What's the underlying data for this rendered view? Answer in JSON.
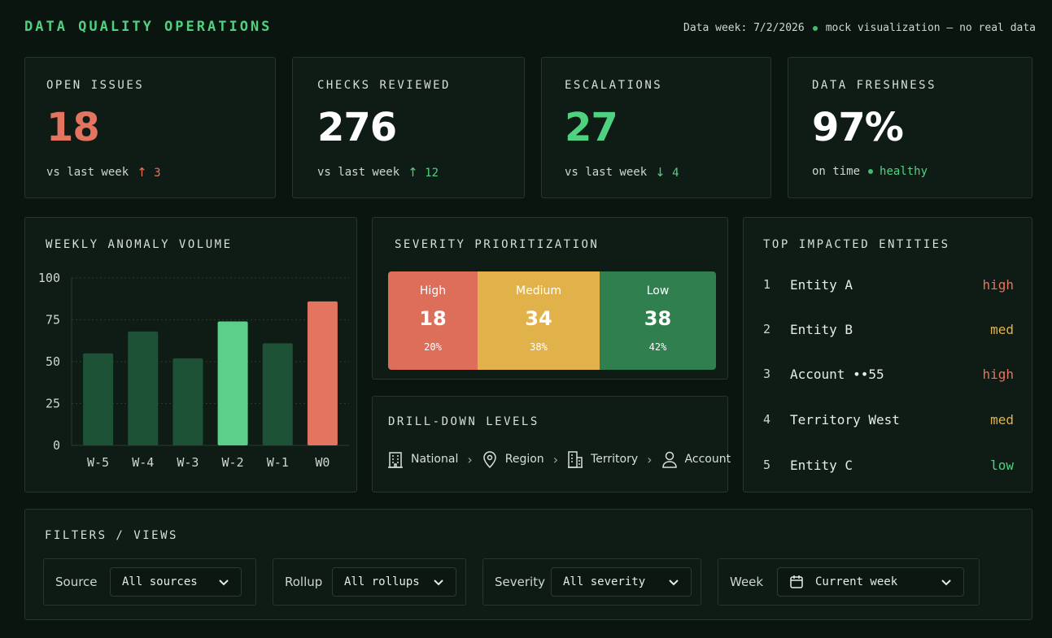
{
  "header": {
    "title": "DATA QUALITY OPERATIONS",
    "data_week": "Data week: 7/2/2026",
    "note": "mock visualization — no real data"
  },
  "kpis": [
    {
      "label": "OPEN ISSUES",
      "value": "18",
      "sub": "vs last week",
      "delta_arrow": "↑",
      "delta": "3",
      "value_color": "#e3745f",
      "delta_color": "#e3745f"
    },
    {
      "label": "CHECKS REVIEWED",
      "value": "276",
      "sub": "vs last week",
      "delta_arrow": "↑",
      "delta": "12",
      "value_color": "#ffffff",
      "delta_color": "#4ed27f"
    },
    {
      "label": "ESCALATIONS",
      "value": "27",
      "sub": "vs last week",
      "delta_arrow": "↓",
      "delta": "4",
      "value_color": "#4ed27f",
      "delta_color": "#4ed27f"
    },
    {
      "label": "DATA FRESHNESS",
      "value": "97%",
      "sub": "on time",
      "status": "healthy",
      "value_color": "#ffffff",
      "delta_color": "#4ed27f"
    }
  ],
  "anomaly_chart": {
    "label": "WEEKLY ANOMALY VOLUME"
  },
  "chart_data": {
    "type": "bar",
    "title": "WEEKLY ANOMALY VOLUME",
    "categories": [
      "W-5",
      "W-4",
      "W-3",
      "W-2",
      "W-1",
      "W0"
    ],
    "values": [
      55,
      68,
      52,
      74,
      61,
      86
    ],
    "bar_colors": [
      "#1d5236",
      "#1d5236",
      "#1d5236",
      "#5ccf8a",
      "#1d5236",
      "#e3745f"
    ],
    "yticks": [
      0,
      25,
      50,
      75,
      100
    ],
    "ylim": [
      0,
      100
    ],
    "grid": true
  },
  "severity": {
    "label": "SEVERITY PRIORITIZATION",
    "segments": [
      {
        "name": "High",
        "count": "18",
        "pct": "20%",
        "share": 0.2,
        "color": "#dc6e5a"
      },
      {
        "name": "Medium",
        "count": "34",
        "pct": "38%",
        "share": 0.38,
        "color": "#e2b24a"
      },
      {
        "name": "Low",
        "count": "38",
        "pct": "42%",
        "share": 0.42,
        "color": "#2f7f4f"
      }
    ]
  },
  "drilldown": {
    "label": "DRILL-DOWN LEVELS",
    "levels": [
      {
        "name": "National",
        "icon": "building-icon"
      },
      {
        "name": "Region",
        "icon": "map-pin-icon"
      },
      {
        "name": "Territory",
        "icon": "office-icon"
      },
      {
        "name": "Account",
        "icon": "user-icon"
      }
    ]
  },
  "entities": {
    "label": "TOP IMPACTED ENTITIES",
    "rows": [
      {
        "rank": "1",
        "name": "Entity A",
        "sev": "high",
        "color": "#e3745f"
      },
      {
        "rank": "2",
        "name": "Entity B",
        "sev": "med",
        "color": "#e2b24a"
      },
      {
        "rank": "3",
        "name": "Account ••55",
        "sev": "high",
        "color": "#e3745f"
      },
      {
        "rank": "4",
        "name": "Territory West",
        "sev": "med",
        "color": "#e2b24a"
      },
      {
        "rank": "5",
        "name": "Entity C",
        "sev": "low",
        "color": "#4ed27f"
      }
    ]
  },
  "filters": {
    "label": "FILTERS / VIEWS",
    "items": [
      {
        "label": "Source",
        "value": "All sources"
      },
      {
        "label": "Rollup",
        "value": "All rollups"
      },
      {
        "label": "Severity",
        "value": "All severity"
      },
      {
        "label": "Week",
        "value": "Current week",
        "icon": "calendar-icon"
      }
    ]
  }
}
